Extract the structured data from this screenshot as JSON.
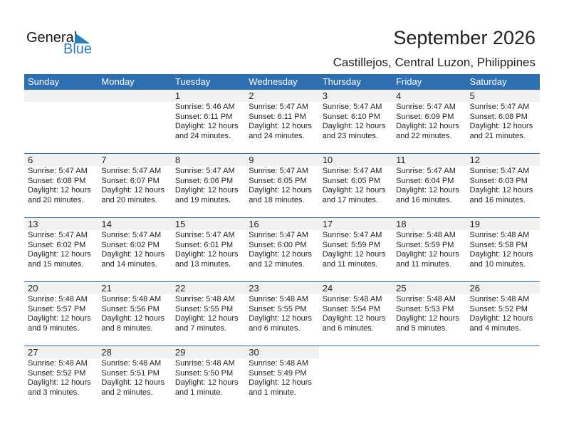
{
  "logo": {
    "text_general": "General",
    "text_blue": "Blue",
    "accent": "#2a7fc1"
  },
  "title": "September 2026",
  "subtitle": "Castillejos, Central Luzon, Philippines",
  "colors": {
    "header": "#2e6fb1",
    "date_strip": "#f1f1f1"
  },
  "weekdays": [
    "Sunday",
    "Monday",
    "Tuesday",
    "Wednesday",
    "Thursday",
    "Friday",
    "Saturday"
  ],
  "leading_blank_days": 2,
  "days": [
    {
      "day": "1",
      "sunrise": "Sunrise: 5:46 AM",
      "sunset": "Sunset: 6:11 PM",
      "daylight": "Daylight: 12 hours",
      "minutes": "and 24 minutes."
    },
    {
      "day": "2",
      "sunrise": "Sunrise: 5:47 AM",
      "sunset": "Sunset: 6:11 PM",
      "daylight": "Daylight: 12 hours",
      "minutes": "and 24 minutes."
    },
    {
      "day": "3",
      "sunrise": "Sunrise: 5:47 AM",
      "sunset": "Sunset: 6:10 PM",
      "daylight": "Daylight: 12 hours",
      "minutes": "and 23 minutes."
    },
    {
      "day": "4",
      "sunrise": "Sunrise: 5:47 AM",
      "sunset": "Sunset: 6:09 PM",
      "daylight": "Daylight: 12 hours",
      "minutes": "and 22 minutes."
    },
    {
      "day": "5",
      "sunrise": "Sunrise: 5:47 AM",
      "sunset": "Sunset: 6:08 PM",
      "daylight": "Daylight: 12 hours",
      "minutes": "and 21 minutes."
    },
    {
      "day": "6",
      "sunrise": "Sunrise: 5:47 AM",
      "sunset": "Sunset: 6:08 PM",
      "daylight": "Daylight: 12 hours",
      "minutes": "and 20 minutes."
    },
    {
      "day": "7",
      "sunrise": "Sunrise: 5:47 AM",
      "sunset": "Sunset: 6:07 PM",
      "daylight": "Daylight: 12 hours",
      "minutes": "and 20 minutes."
    },
    {
      "day": "8",
      "sunrise": "Sunrise: 5:47 AM",
      "sunset": "Sunset: 6:06 PM",
      "daylight": "Daylight: 12 hours",
      "minutes": "and 19 minutes."
    },
    {
      "day": "9",
      "sunrise": "Sunrise: 5:47 AM",
      "sunset": "Sunset: 6:05 PM",
      "daylight": "Daylight: 12 hours",
      "minutes": "and 18 minutes."
    },
    {
      "day": "10",
      "sunrise": "Sunrise: 5:47 AM",
      "sunset": "Sunset: 6:05 PM",
      "daylight": "Daylight: 12 hours",
      "minutes": "and 17 minutes."
    },
    {
      "day": "11",
      "sunrise": "Sunrise: 5:47 AM",
      "sunset": "Sunset: 6:04 PM",
      "daylight": "Daylight: 12 hours",
      "minutes": "and 16 minutes."
    },
    {
      "day": "12",
      "sunrise": "Sunrise: 5:47 AM",
      "sunset": "Sunset: 6:03 PM",
      "daylight": "Daylight: 12 hours",
      "minutes": "and 16 minutes."
    },
    {
      "day": "13",
      "sunrise": "Sunrise: 5:47 AM",
      "sunset": "Sunset: 6:02 PM",
      "daylight": "Daylight: 12 hours",
      "minutes": "and 15 minutes."
    },
    {
      "day": "14",
      "sunrise": "Sunrise: 5:47 AM",
      "sunset": "Sunset: 6:02 PM",
      "daylight": "Daylight: 12 hours",
      "minutes": "and 14 minutes."
    },
    {
      "day": "15",
      "sunrise": "Sunrise: 5:47 AM",
      "sunset": "Sunset: 6:01 PM",
      "daylight": "Daylight: 12 hours",
      "minutes": "and 13 minutes."
    },
    {
      "day": "16",
      "sunrise": "Sunrise: 5:47 AM",
      "sunset": "Sunset: 6:00 PM",
      "daylight": "Daylight: 12 hours",
      "minutes": "and 12 minutes."
    },
    {
      "day": "17",
      "sunrise": "Sunrise: 5:47 AM",
      "sunset": "Sunset: 5:59 PM",
      "daylight": "Daylight: 12 hours",
      "minutes": "and 11 minutes."
    },
    {
      "day": "18",
      "sunrise": "Sunrise: 5:48 AM",
      "sunset": "Sunset: 5:59 PM",
      "daylight": "Daylight: 12 hours",
      "minutes": "and 11 minutes."
    },
    {
      "day": "19",
      "sunrise": "Sunrise: 5:48 AM",
      "sunset": "Sunset: 5:58 PM",
      "daylight": "Daylight: 12 hours",
      "minutes": "and 10 minutes."
    },
    {
      "day": "20",
      "sunrise": "Sunrise: 5:48 AM",
      "sunset": "Sunset: 5:57 PM",
      "daylight": "Daylight: 12 hours",
      "minutes": "and 9 minutes."
    },
    {
      "day": "21",
      "sunrise": "Sunrise: 5:48 AM",
      "sunset": "Sunset: 5:56 PM",
      "daylight": "Daylight: 12 hours",
      "minutes": "and 8 minutes."
    },
    {
      "day": "22",
      "sunrise": "Sunrise: 5:48 AM",
      "sunset": "Sunset: 5:55 PM",
      "daylight": "Daylight: 12 hours",
      "minutes": "and 7 minutes."
    },
    {
      "day": "23",
      "sunrise": "Sunrise: 5:48 AM",
      "sunset": "Sunset: 5:55 PM",
      "daylight": "Daylight: 12 hours",
      "minutes": "and 6 minutes."
    },
    {
      "day": "24",
      "sunrise": "Sunrise: 5:48 AM",
      "sunset": "Sunset: 5:54 PM",
      "daylight": "Daylight: 12 hours",
      "minutes": "and 6 minutes."
    },
    {
      "day": "25",
      "sunrise": "Sunrise: 5:48 AM",
      "sunset": "Sunset: 5:53 PM",
      "daylight": "Daylight: 12 hours",
      "minutes": "and 5 minutes."
    },
    {
      "day": "26",
      "sunrise": "Sunrise: 5:48 AM",
      "sunset": "Sunset: 5:52 PM",
      "daylight": "Daylight: 12 hours",
      "minutes": "and 4 minutes."
    },
    {
      "day": "27",
      "sunrise": "Sunrise: 5:48 AM",
      "sunset": "Sunset: 5:52 PM",
      "daylight": "Daylight: 12 hours",
      "minutes": "and 3 minutes."
    },
    {
      "day": "28",
      "sunrise": "Sunrise: 5:48 AM",
      "sunset": "Sunset: 5:51 PM",
      "daylight": "Daylight: 12 hours",
      "minutes": "and 2 minutes."
    },
    {
      "day": "29",
      "sunrise": "Sunrise: 5:48 AM",
      "sunset": "Sunset: 5:50 PM",
      "daylight": "Daylight: 12 hours",
      "minutes": "and 1 minute."
    },
    {
      "day": "30",
      "sunrise": "Sunrise: 5:48 AM",
      "sunset": "Sunset: 5:49 PM",
      "daylight": "Daylight: 12 hours",
      "minutes": "and 1 minute."
    }
  ]
}
